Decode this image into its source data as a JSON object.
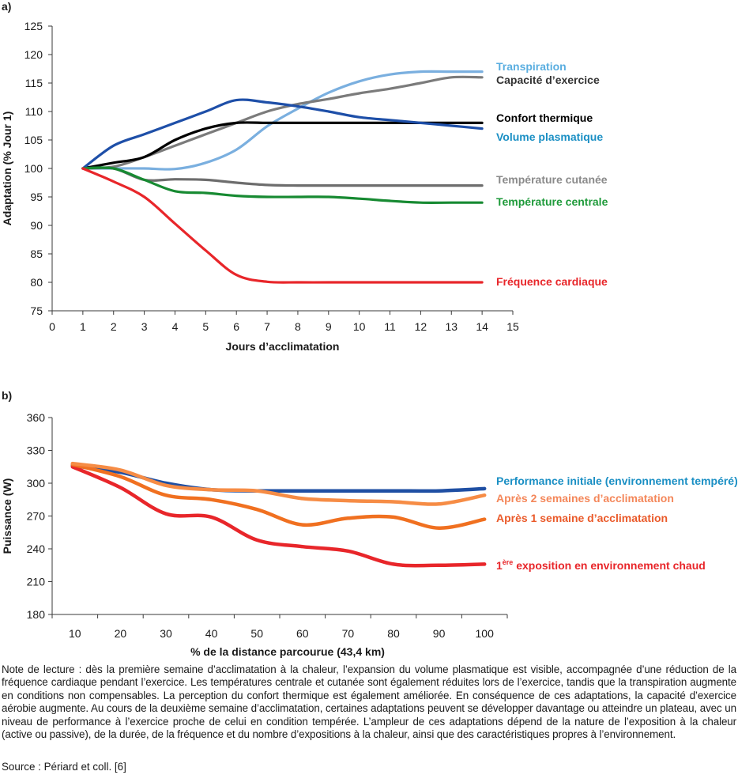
{
  "chart_data": [
    {
      "panel": "a)",
      "type": "line",
      "title": "",
      "xlabel": "Jours d’acclimatation",
      "ylabel": "Adaptation (% Jour 1)",
      "xlim": [
        0,
        15
      ],
      "ylim": [
        75,
        125
      ],
      "xticks": [
        0,
        1,
        2,
        3,
        4,
        5,
        6,
        7,
        8,
        9,
        10,
        11,
        12,
        13,
        14,
        15
      ],
      "yticks": [
        75,
        80,
        85,
        90,
        95,
        100,
        105,
        110,
        115,
        120,
        125
      ],
      "grid": false,
      "legend": "right (inline labels at line ends)",
      "x": [
        1,
        2,
        3,
        4,
        5,
        6,
        7,
        8,
        9,
        10,
        11,
        12,
        13,
        14
      ],
      "series": [
        {
          "name": "Transpiration",
          "color": "#7aafdf",
          "label_color": "#5aaee0",
          "values": [
            100,
            100,
            100,
            99.9,
            101,
            103.3,
            107.4,
            110.5,
            113.3,
            115.3,
            116.5,
            117,
            117,
            117
          ]
        },
        {
          "name": "Capacité d’exercice",
          "color": "#7b7b7b",
          "label_color": "#333333",
          "values": [
            100,
            100.3,
            102,
            104,
            106,
            108,
            110,
            111.3,
            112.2,
            113.2,
            114,
            115,
            116,
            116
          ]
        },
        {
          "name": "Confort thermique",
          "color": "#000000",
          "label_color": "#000000",
          "values": [
            100,
            101,
            102,
            105,
            107,
            108,
            108,
            108,
            108,
            108,
            108,
            108,
            108,
            108
          ]
        },
        {
          "name": "Volume plasmatique",
          "color": "#1e4fa8",
          "label_color": "#1a8fc4",
          "values": [
            100,
            104,
            106,
            108,
            110,
            112,
            111.6,
            110.9,
            110,
            109,
            108.5,
            108,
            107.5,
            107
          ]
        },
        {
          "name": "Température cutanée",
          "color": "#6d6d6d",
          "label_color": "#8a8a8a",
          "values": [
            100,
            100,
            98,
            98.1,
            98,
            97.5,
            97.1,
            97,
            97,
            97,
            97,
            97,
            97,
            97
          ]
        },
        {
          "name": "Température centrale",
          "color": "#178a32",
          "label_color": "#1e9a3a",
          "values": [
            100,
            100,
            98,
            96,
            95.7,
            95.2,
            95,
            95,
            95,
            94.7,
            94.3,
            94,
            94,
            94
          ]
        },
        {
          "name": "Fréquence cardiaque",
          "color": "#e8262a",
          "label_color": "#e8262a",
          "values": [
            100,
            97.7,
            95,
            90.3,
            85.6,
            81.3,
            80.1,
            80,
            80,
            80,
            80,
            80,
            80,
            80
          ]
        }
      ]
    },
    {
      "panel": "b)",
      "type": "line",
      "title": "",
      "xlabel": "% de la distance parcourue (43,4 km)",
      "ylabel": "Puissance (W)",
      "categories": [
        "10",
        "20",
        "30",
        "40",
        "50",
        "60",
        "70",
        "80",
        "90",
        "100"
      ],
      "ylim": [
        180,
        360
      ],
      "yticks": [
        180,
        210,
        240,
        270,
        300,
        330,
        360
      ],
      "grid": false,
      "legend": "right (inline labels at line ends)",
      "series": [
        {
          "name": "Performance initiale (environnement tempéré)",
          "color": "#1f4fa3",
          "label_color": "#1a8fc4",
          "values": [
            316,
            310,
            300,
            294,
            293,
            293,
            293,
            293,
            293,
            295
          ]
        },
        {
          "name": "Après 2 semaines d’acclimatation",
          "color": "#f68c45",
          "label_color": "#f4875a",
          "values": [
            318,
            312,
            298,
            294,
            293,
            286,
            284,
            283,
            281,
            289
          ]
        },
        {
          "name": "Après 1 semaine d’acclimatation",
          "color": "#f07020",
          "label_color": "#ea5a2a",
          "values": [
            317,
            306,
            289,
            285,
            276,
            262,
            268,
            269,
            259,
            267
          ]
        },
        {
          "name": "1ère exposition en environnement chaud",
          "label_prefix": "1",
          "label_sup": "ère",
          "label_rest": " exposition en environnement chaud",
          "color": "#e8262a",
          "label_color": "#e8262a",
          "values": [
            315,
            296,
            272,
            269,
            248,
            242,
            238,
            226,
            225,
            226
          ]
        }
      ]
    }
  ],
  "note": "Note de lecture : dès la première semaine d’acclimatation à la chaleur, l’expansion du volume plasmatique est visible, accompagnée d’une réduction de la fréquence cardiaque pendant l’exercice. Les températures centrale et cutanée sont également réduites lors de l’exercice, tandis que la transpiration augmente en conditions non compensables. La perception du confort thermique est également améliorée. En conséquence de ces adaptations, la capacité d’exercice aérobie augmente. Au cours de la deuxième semaine d’acclimatation, certaines adaptations peuvent se développer davantage ou atteindre un plateau, avec un niveau de performance à l’exercice proche de celui en condition tempérée. L’ampleur de ces adaptations dépend de la nature de l’exposition à la chaleur (active ou passive), de la durée, de la fréquence et du nombre d’expositions à la chaleur, ainsi que des caractéristiques propres à l’environnement.",
  "source": "Source : Périard et coll. [6]"
}
